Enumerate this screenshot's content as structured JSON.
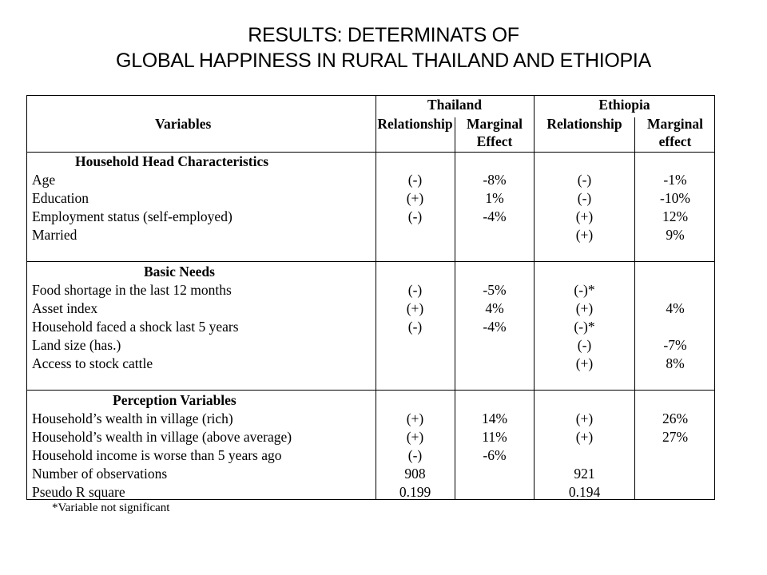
{
  "title": {
    "line1": "RESULTS: DETERMINATS OF",
    "line2": "GLOBAL HAPPINESS IN RURAL THAILAND AND ETHIOPIA"
  },
  "table": {
    "header": {
      "group1": "Thailand",
      "group2": "Ethiopia",
      "variables": "Variables",
      "th_rel": "Relationship",
      "th_me_1": "Marginal",
      "th_me_2": "Effect",
      "et_rel": "Relationship",
      "et_me_1": "Marginal",
      "et_me_2": "effect"
    },
    "sections": [
      {
        "heading": "Household Head Characteristics",
        "rows": [
          {
            "label": "Age",
            "th_rel": "(-)",
            "th_me": "-8%",
            "et_rel": "(-)",
            "et_me": "-1%"
          },
          {
            "label": "Education",
            "th_rel": "(+)",
            "th_me": "1%",
            "et_rel": "(-)",
            "et_me": "-10%"
          },
          {
            "label": "Employment status (self-employed)",
            "th_rel": "(-)",
            "th_me": "-4%",
            "et_rel": "(+)",
            "et_me": "12%"
          },
          {
            "label": "Married",
            "th_rel": "",
            "th_me": "",
            "et_rel": "(+)",
            "et_me": "9%"
          }
        ]
      },
      {
        "heading": "Basic Needs",
        "rows": [
          {
            "label": "Food shortage in the last 12 months",
            "th_rel": "(-)",
            "th_me": "-5%",
            "et_rel": "(-)*",
            "et_me": ""
          },
          {
            "label": "Asset index",
            "th_rel": "(+)",
            "th_me": "4%",
            "et_rel": "(+)",
            "et_me": "4%"
          },
          {
            "label": "Household faced a shock last 5 years",
            "th_rel": "(-)",
            "th_me": "-4%",
            "et_rel": "(-)*",
            "et_me": ""
          },
          {
            "label": "Land size (has.)",
            "th_rel": "",
            "th_me": "",
            "et_rel": "(-)",
            "et_me": "-7%"
          },
          {
            "label": "Access to stock cattle",
            "th_rel": "",
            "th_me": "",
            "et_rel": "(+)",
            "et_me": "8%"
          }
        ]
      },
      {
        "heading": "Perception Variables",
        "rows": [
          {
            "label": "Household’s wealth in village (rich)",
            "th_rel": "(+)",
            "th_me": "14%",
            "et_rel": "(+)",
            "et_me": "26%"
          },
          {
            "label": "Household’s wealth in village (above average)",
            "th_rel": "(+)",
            "th_me": "11%",
            "et_rel": "(+)",
            "et_me": "27%"
          },
          {
            "label": "Household income is worse than 5 years ago",
            "th_rel": "(-)",
            "th_me": "-6%",
            "et_rel": "",
            "et_me": ""
          },
          {
            "label": "Number of observations",
            "th_rel": "908",
            "th_me": "",
            "et_rel": "921",
            "et_me": ""
          },
          {
            "label": "Pseudo R square",
            "th_rel": "0.199",
            "th_me": "",
            "et_rel": "0.194",
            "et_me": ""
          }
        ]
      }
    ]
  },
  "footnote": "*Variable not significant"
}
